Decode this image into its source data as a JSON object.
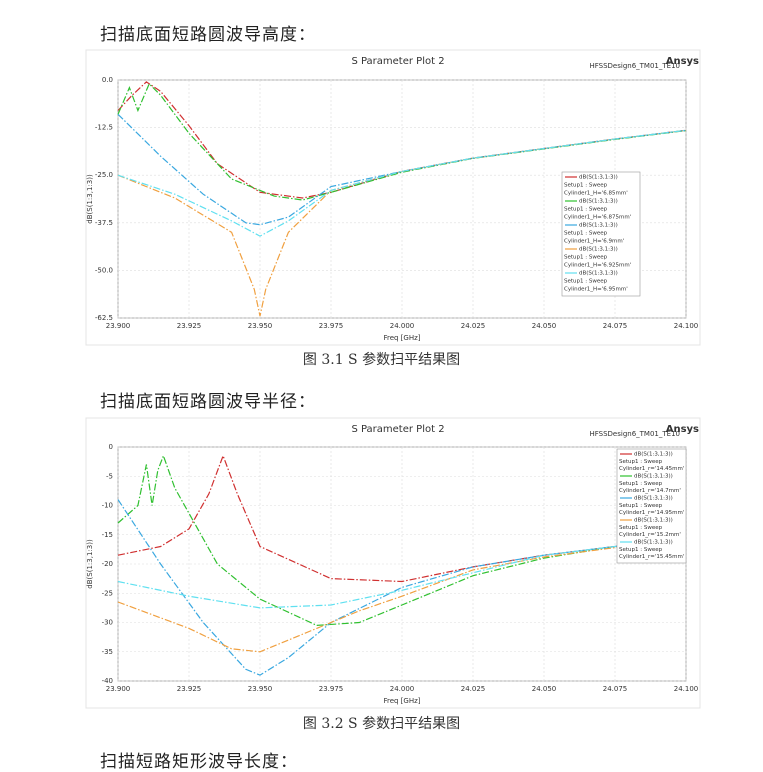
{
  "doc": {
    "heading1": "扫描底面短路圆波导高度：",
    "caption1": "图 3.1 S 参数扫平结果图",
    "heading2": "扫描底面短路圆波导半径：",
    "caption2": "图 3.2 S 参数扫平结果图",
    "heading3": "扫描短路矩形波导长度："
  },
  "chart_data": [
    {
      "type": "line",
      "title": "S Parameter Plot 2",
      "subtitle": "HFSSDesign6_TM01_TE10",
      "logo": "Ansys",
      "xlabel": "Freq [GHz]",
      "ylabel": "dB(S(1:3,1:3))",
      "grid": true,
      "legend": "right",
      "xlim": [
        23.9,
        24.1
      ],
      "xticks": [
        {
          "value": 23.9,
          "label": "23.900"
        },
        23.925,
        {
          "value": 23.95,
          "label": "23.950"
        },
        23.975,
        {
          "value": 24,
          "label": "24.000"
        },
        24.025,
        {
          "value": 24.05,
          "label": "24.050"
        },
        24.075,
        {
          "value": 24.1,
          "label": "24.100"
        }
      ],
      "ylim": [
        -62.5,
        0
      ],
      "yticks": [
        {
          "value": 0,
          "label": "0.0"
        },
        -12.5,
        {
          "value": -25,
          "label": "-25.0"
        },
        -37.5,
        {
          "value": -50,
          "label": "-50.0"
        },
        -62.5
      ],
      "series": [
        {
          "name": "dB(S(1:3,1:3))",
          "setup": "Setup1 : Sweep",
          "variation": "Cylinder1_H='6.85mm'",
          "color": "#d03030",
          "x": [
            23.9,
            23.905,
            23.91,
            23.915,
            23.925,
            23.935,
            23.95,
            23.965,
            23.975,
            24,
            24.025,
            24.05,
            24.075,
            24.1
          ],
          "values": [
            -8,
            -4,
            -0.5,
            -3,
            -12,
            -22,
            -29.5,
            -31,
            -29.5,
            -24,
            -20.5,
            -18,
            -15.5,
            -13.2
          ]
        },
        {
          "name": "dB(S(1:3,1:3))",
          "setup": "Setup1 : Sweep",
          "variation": "Cylinder1_H='6.875mm'",
          "color": "#30c030",
          "x": [
            23.9,
            23.904,
            23.907,
            23.911,
            23.915,
            23.925,
            23.94,
            23.955,
            23.965,
            23.975,
            24,
            24.025,
            24.05,
            24.075,
            24.1
          ],
          "values": [
            -9,
            -2,
            -8,
            -1,
            -4,
            -14,
            -26,
            -30.5,
            -31.5,
            -29.5,
            -24.2,
            -20.6,
            -18.1,
            -15.6,
            -13.3
          ]
        },
        {
          "name": "dB(S(1:3,1:3))",
          "setup": "Setup1 : Sweep",
          "variation": "Cylinder1_H='6.9mm'",
          "color": "#3aa8e0",
          "x": [
            23.9,
            23.915,
            23.93,
            23.945,
            23.95,
            23.96,
            23.975,
            24,
            24.025,
            24.05,
            24.075,
            24.1
          ],
          "values": [
            -9,
            -20,
            -30,
            -37.5,
            -38,
            -36,
            -28,
            -24,
            -20.5,
            -18,
            -15.5,
            -13.2
          ]
        },
        {
          "name": "dB(S(1:3,1:3))",
          "setup": "Setup1 : Sweep",
          "variation": "Cylinder1_H='6.925mm'",
          "color": "#f0a040",
          "x": [
            23.9,
            23.92,
            23.94,
            23.948,
            23.95,
            23.952,
            23.96,
            23.975,
            24,
            24.025,
            24.05,
            24.075,
            24.1
          ],
          "values": [
            -25,
            -31,
            -40,
            -55,
            -62,
            -55,
            -40,
            -29,
            -24,
            -20.5,
            -18,
            -15.5,
            -13.2
          ]
        },
        {
          "name": "dB(S(1:3,1:3))",
          "setup": "Setup1 : Sweep",
          "variation": "Cylinder1_H='6.95mm'",
          "color": "#60e0f0",
          "x": [
            23.9,
            23.92,
            23.94,
            23.95,
            23.96,
            23.975,
            24,
            24.025,
            24.05,
            24.075,
            24.1
          ],
          "values": [
            -25,
            -30,
            -37,
            -41,
            -37,
            -29,
            -24,
            -20.5,
            -18,
            -15.5,
            -13.2
          ]
        }
      ]
    },
    {
      "type": "line",
      "title": "S Parameter Plot 2",
      "subtitle": "HFSSDesign6_TM01_TE10",
      "logo": "Ansys",
      "xlabel": "Freq [GHz]",
      "ylabel": "dB(S(1:3,1:3))",
      "grid": true,
      "legend": "top-right",
      "xlim": [
        23.9,
        24.1
      ],
      "xticks": [
        {
          "value": 23.9,
          "label": "23.900"
        },
        23.925,
        {
          "value": 23.95,
          "label": "23.950"
        },
        23.975,
        {
          "value": 24,
          "label": "24.000"
        },
        24.025,
        {
          "value": 24.05,
          "label": "24.050"
        },
        24.075,
        {
          "value": 24.1,
          "label": "24.100"
        }
      ],
      "ylim": [
        -40,
        0
      ],
      "yticks": [
        0,
        -5,
        -10,
        -15,
        -20,
        -25,
        -30,
        -35,
        -40
      ],
      "series": [
        {
          "name": "dB(S(1:3,1:3))",
          "setup": "Setup1 : Sweep",
          "variation": "Cylinder1_r='14.45mm'",
          "color": "#d03030",
          "x": [
            23.9,
            23.915,
            23.925,
            23.932,
            23.937,
            23.942,
            23.95,
            23.975,
            24,
            24.025,
            24.05,
            24.075,
            24.1
          ],
          "values": [
            -18.5,
            -17,
            -14,
            -8,
            -1.5,
            -8,
            -17,
            -22.5,
            -23,
            -20.5,
            -18.5,
            -17,
            -15
          ]
        },
        {
          "name": "dB(S(1:3,1:3))",
          "setup": "Setup1 : Sweep",
          "variation": "Cylinder1_r='14.7mm'",
          "color": "#30c030",
          "x": [
            23.9,
            23.907,
            23.91,
            23.912,
            23.914,
            23.916,
            23.92,
            23.935,
            23.95,
            23.97,
            23.985,
            24,
            24.025,
            24.05,
            24.075,
            24.1
          ],
          "values": [
            -13,
            -10,
            -3,
            -10,
            -4,
            -1.5,
            -7,
            -20,
            -26,
            -30.5,
            -30,
            -27,
            -22,
            -19,
            -17,
            -15.5
          ]
        },
        {
          "name": "dB(S(1:3,1:3))",
          "setup": "Setup1 : Sweep",
          "variation": "Cylinder1_r='14.95mm'",
          "color": "#3aa8e0",
          "x": [
            23.9,
            23.915,
            23.93,
            23.945,
            23.95,
            23.96,
            23.975,
            24,
            24.025,
            24.05,
            24.075,
            24.1
          ],
          "values": [
            -9,
            -20,
            -30,
            -38,
            -39,
            -36,
            -30,
            -24,
            -20.5,
            -18.5,
            -17,
            -15.5
          ]
        },
        {
          "name": "dB(S(1:3,1:3))",
          "setup": "Setup1 : Sweep",
          "variation": "Cylinder1_r='15.2mm'",
          "color": "#f0a040",
          "x": [
            23.9,
            23.925,
            23.94,
            23.95,
            23.965,
            23.985,
            24,
            24.025,
            24.05,
            24.075,
            24.1
          ],
          "values": [
            -26.5,
            -31,
            -34.5,
            -35,
            -32,
            -28,
            -25.5,
            -21,
            -18.8,
            -17.2,
            -15.7
          ]
        },
        {
          "name": "dB(S(1:3,1:3))",
          "setup": "Setup1 : Sweep",
          "variation": "Cylinder1_r='15.45mm'",
          "color": "#60e0f0",
          "x": [
            23.9,
            23.925,
            23.95,
            23.975,
            24,
            24.025,
            24.05,
            24.075,
            24.1
          ],
          "values": [
            -23,
            -25.5,
            -27.5,
            -27,
            -24.5,
            -21.5,
            -18.5,
            -17,
            -15.5
          ]
        }
      ]
    }
  ]
}
